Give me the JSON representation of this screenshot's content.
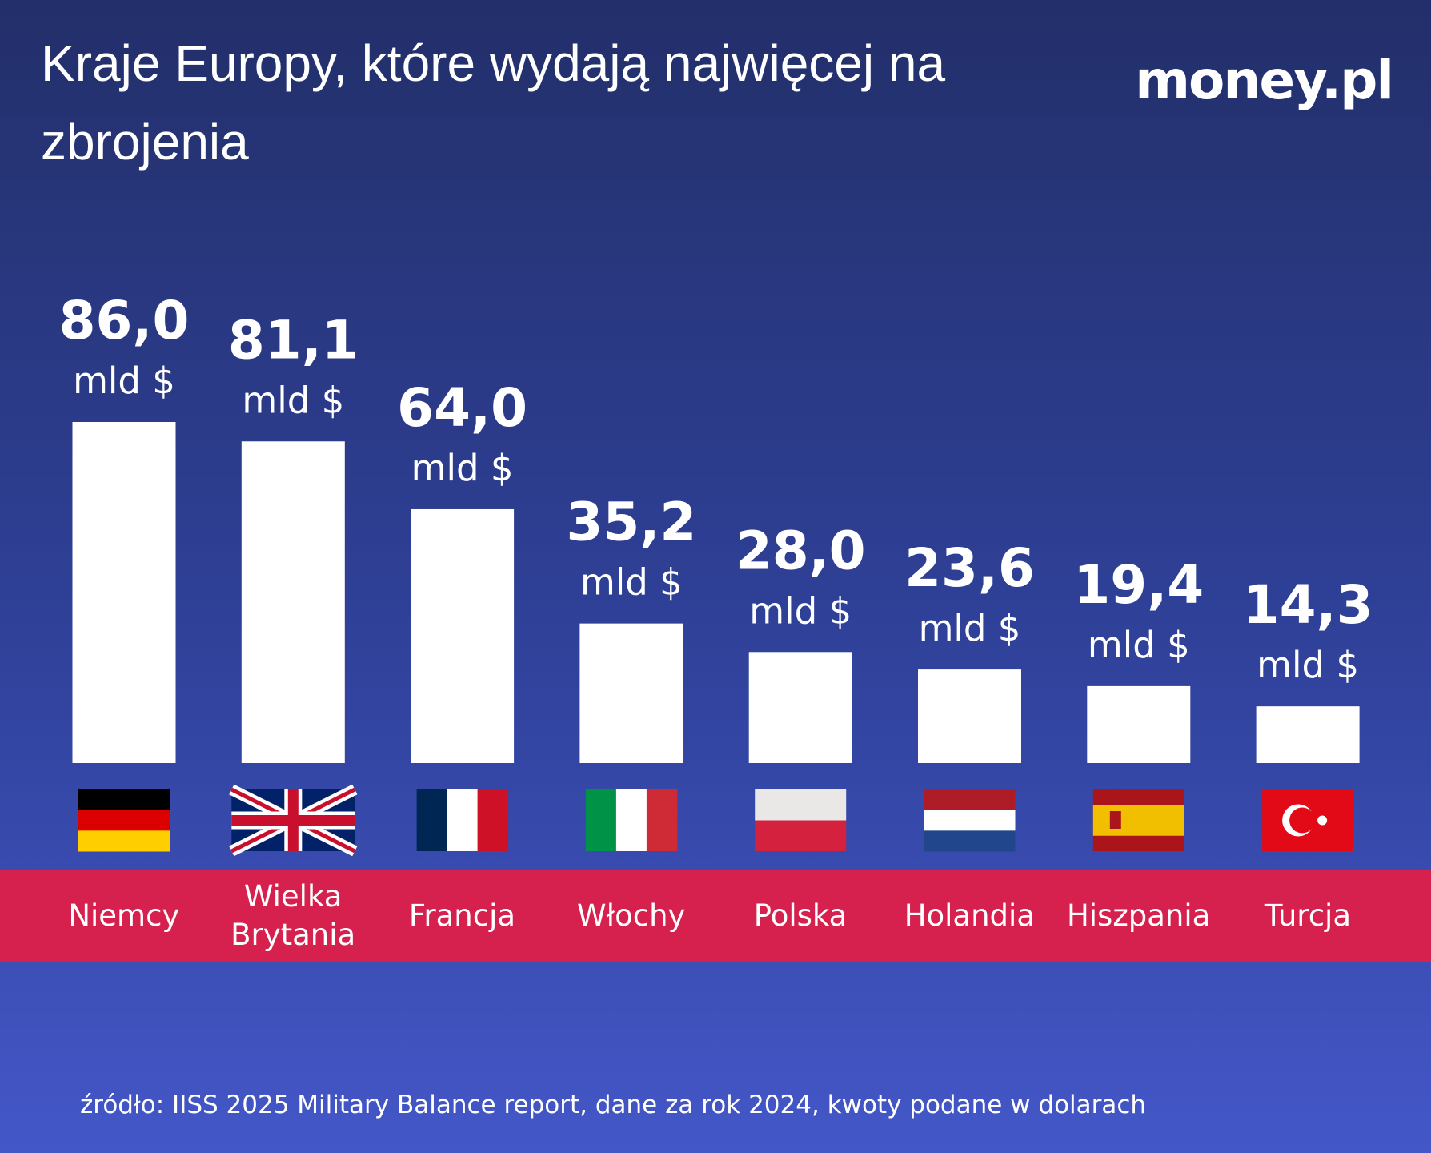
{
  "chart_data": {
    "type": "bar",
    "title": "Kraje Europy, które wydają najwięcej na zbrojenia",
    "categories": [
      "Niemcy",
      "Wielka Brytania",
      "Francja",
      "Włochy",
      "Polska",
      "Holandia",
      "Hiszpania",
      "Turcja"
    ],
    "values": [
      86.0,
      81.1,
      64.0,
      35.2,
      28.0,
      23.6,
      19.4,
      14.3
    ],
    "value_labels": [
      "86,0",
      "81,1",
      "64,0",
      "35,2",
      "28,0",
      "23,6",
      "19,4",
      "14,3"
    ],
    "unit_label": "mld $",
    "color": "#ffffff"
  },
  "brand": "money.pl",
  "source": "źródło: IISS 2025 Military Balance report, dane za rok 2024, kwoty podane w dolarach"
}
